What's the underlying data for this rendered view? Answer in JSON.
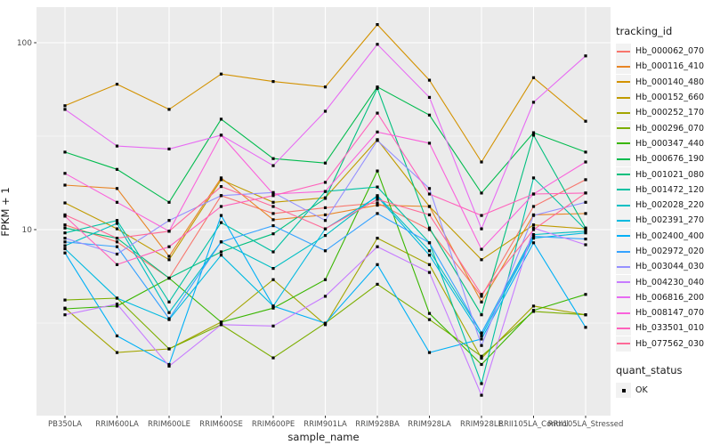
{
  "figure": {
    "x_axis": {
      "title": "sample_name"
    },
    "y_axis": {
      "title": "FPKM + 1",
      "scale": "log10",
      "tick_labels": [
        "100",
        "10"
      ],
      "tick_values": [
        100,
        10
      ]
    },
    "legend": {
      "tracking_title": "tracking_id",
      "quant_title": "quant_status",
      "quant_items": [
        {
          "label": "OK",
          "marker": "black-square"
        }
      ]
    },
    "colors": {
      "panel_bg": "#EBEBEB",
      "grid": "#FFFFFF",
      "point": "#000000",
      "legend_key_bg": "#F2F2F2",
      "axis_text": "#4D4D4D",
      "tick_mark": "#333333"
    }
  },
  "chart_data": {
    "type": "line",
    "title": "",
    "xlabel": "sample_name",
    "ylabel": "FPKM + 1",
    "y_scale": "log10",
    "ylim": [
      1,
      155
    ],
    "y_major_breaks": [
      10,
      100
    ],
    "y_minor_breaks": [
      3.162,
      31.62
    ],
    "grid": true,
    "legend_position": "right",
    "point_marker": "black-square",
    "categories": [
      "PB350LA",
      "RRIM600LA",
      "RRIM600LE",
      "RRIM600SE",
      "RRIM600PE",
      "RRIM901LA",
      "RRIM928BA",
      "RRIM928LA",
      "RRIM928LE",
      "RRII105LA_Control",
      "RRII105LA_Stressed"
    ],
    "series": [
      {
        "name": "Hb_000062_070",
        "color": "#F8766D",
        "values": [
          10.6,
          8.6,
          5.5,
          15.2,
          12.2,
          13.1,
          13.9,
          10.0,
          4.4,
          13.3,
          18.5
        ]
      },
      {
        "name": "Hb_000116_410",
        "color": "#E88526",
        "values": [
          17.3,
          16.6,
          7.2,
          18.9,
          11.3,
          12.0,
          13.5,
          13.3,
          4.1,
          12.0,
          12.2
        ]
      },
      {
        "name": "Hb_000140_480",
        "color": "#D39200",
        "values": [
          46,
          60,
          44,
          68,
          62,
          58,
          125,
          63,
          23,
          65,
          38
        ]
      },
      {
        "name": "Hb_000152_660",
        "color": "#C09B00",
        "values": [
          13.9,
          10.1,
          6.9,
          18.5,
          14.0,
          14.8,
          30.3,
          13.3,
          6.9,
          10.6,
          10.1
        ]
      },
      {
        "name": "Hb_000252_170",
        "color": "#A3A500",
        "values": [
          3.8,
          2.2,
          2.3,
          3.2,
          5.4,
          3.1,
          9.0,
          6.5,
          2.05,
          3.9,
          3.5
        ]
      },
      {
        "name": "Hb_000296_070",
        "color": "#7CAE00",
        "values": [
          4.2,
          4.3,
          2.3,
          3.1,
          2.06,
          3.16,
          5.1,
          3.3,
          2.1,
          3.65,
          3.5
        ]
      },
      {
        "name": "Hb_000347_440",
        "color": "#39B600",
        "values": [
          3.77,
          3.9,
          5.5,
          3.2,
          3.8,
          5.4,
          20.6,
          3.56,
          1.9,
          3.7,
          4.5
        ]
      },
      {
        "name": "Hb_000676_190",
        "color": "#00BB4E",
        "values": [
          26,
          21,
          14,
          39,
          24,
          22.7,
          58,
          41,
          15.7,
          33,
          26
        ]
      },
      {
        "name": "Hb_001021_080",
        "color": "#00BF7D",
        "values": [
          10.2,
          9.0,
          5.5,
          7.6,
          9.5,
          14.7,
          57,
          10.2,
          3.5,
          32,
          10.2
        ]
      },
      {
        "name": "Hb_001472_120",
        "color": "#00C1A3",
        "values": [
          9.6,
          11.2,
          4.1,
          10.9,
          7.6,
          16.0,
          16.9,
          8.5,
          1.5,
          18.9,
          10.0
        ]
      },
      {
        "name": "Hb_002028_220",
        "color": "#00BFC4",
        "values": [
          8.2,
          10.8,
          3.6,
          8.6,
          6.2,
          9.3,
          15.2,
          7.7,
          2.8,
          9.4,
          9.8
        ]
      },
      {
        "name": "Hb_002391_270",
        "color": "#00BAE0",
        "values": [
          7.9,
          4.3,
          3.3,
          7.3,
          3.9,
          10.1,
          15.0,
          7.3,
          2.7,
          9.0,
          9.6
        ]
      },
      {
        "name": "Hb_002400_400",
        "color": "#00B0F6",
        "values": [
          7.5,
          2.7,
          1.9,
          11.9,
          3.9,
          3.16,
          6.5,
          2.2,
          2.6,
          8.5,
          3.0
        ]
      },
      {
        "name": "Hb_002972_020",
        "color": "#35A2FF",
        "values": [
          8.6,
          8.1,
          3.34,
          8.6,
          10.5,
          7.7,
          12.2,
          8.5,
          2.8,
          9.2,
          8.9
        ]
      },
      {
        "name": "Hb_003044_030",
        "color": "#9590FF",
        "values": [
          9.0,
          7.4,
          11.2,
          15.2,
          15.8,
          11.2,
          30.0,
          16.6,
          2.4,
          11.9,
          14.0
        ]
      },
      {
        "name": "Hb_004230_040",
        "color": "#C77CFF",
        "values": [
          3.5,
          4.0,
          1.86,
          3.1,
          3.05,
          4.4,
          8.1,
          5.9,
          1.3,
          10.2,
          8.3
        ]
      },
      {
        "name": "Hb_006816_200",
        "color": "#E76BF3",
        "values": [
          44,
          28,
          27,
          32,
          22,
          43,
          98,
          51,
          10.1,
          48,
          85
        ]
      },
      {
        "name": "Hb_008147_070",
        "color": "#FA62DB",
        "values": [
          20,
          14,
          9.8,
          32,
          15.5,
          16.0,
          33.3,
          29,
          7.85,
          15.5,
          23
        ]
      },
      {
        "name": "Hb_033501_010",
        "color": "#FF62BC",
        "values": [
          11.8,
          6.5,
          8.1,
          13.3,
          15.2,
          17.9,
          42,
          15.5,
          11.9,
          15.5,
          15.7
        ]
      },
      {
        "name": "Hb_077562_030",
        "color": "#FF6A98",
        "values": [
          12.0,
          9.0,
          9.8,
          17.0,
          13.3,
          10.1,
          14.5,
          12.0,
          4.5,
          10.0,
          15.7
        ]
      }
    ]
  }
}
